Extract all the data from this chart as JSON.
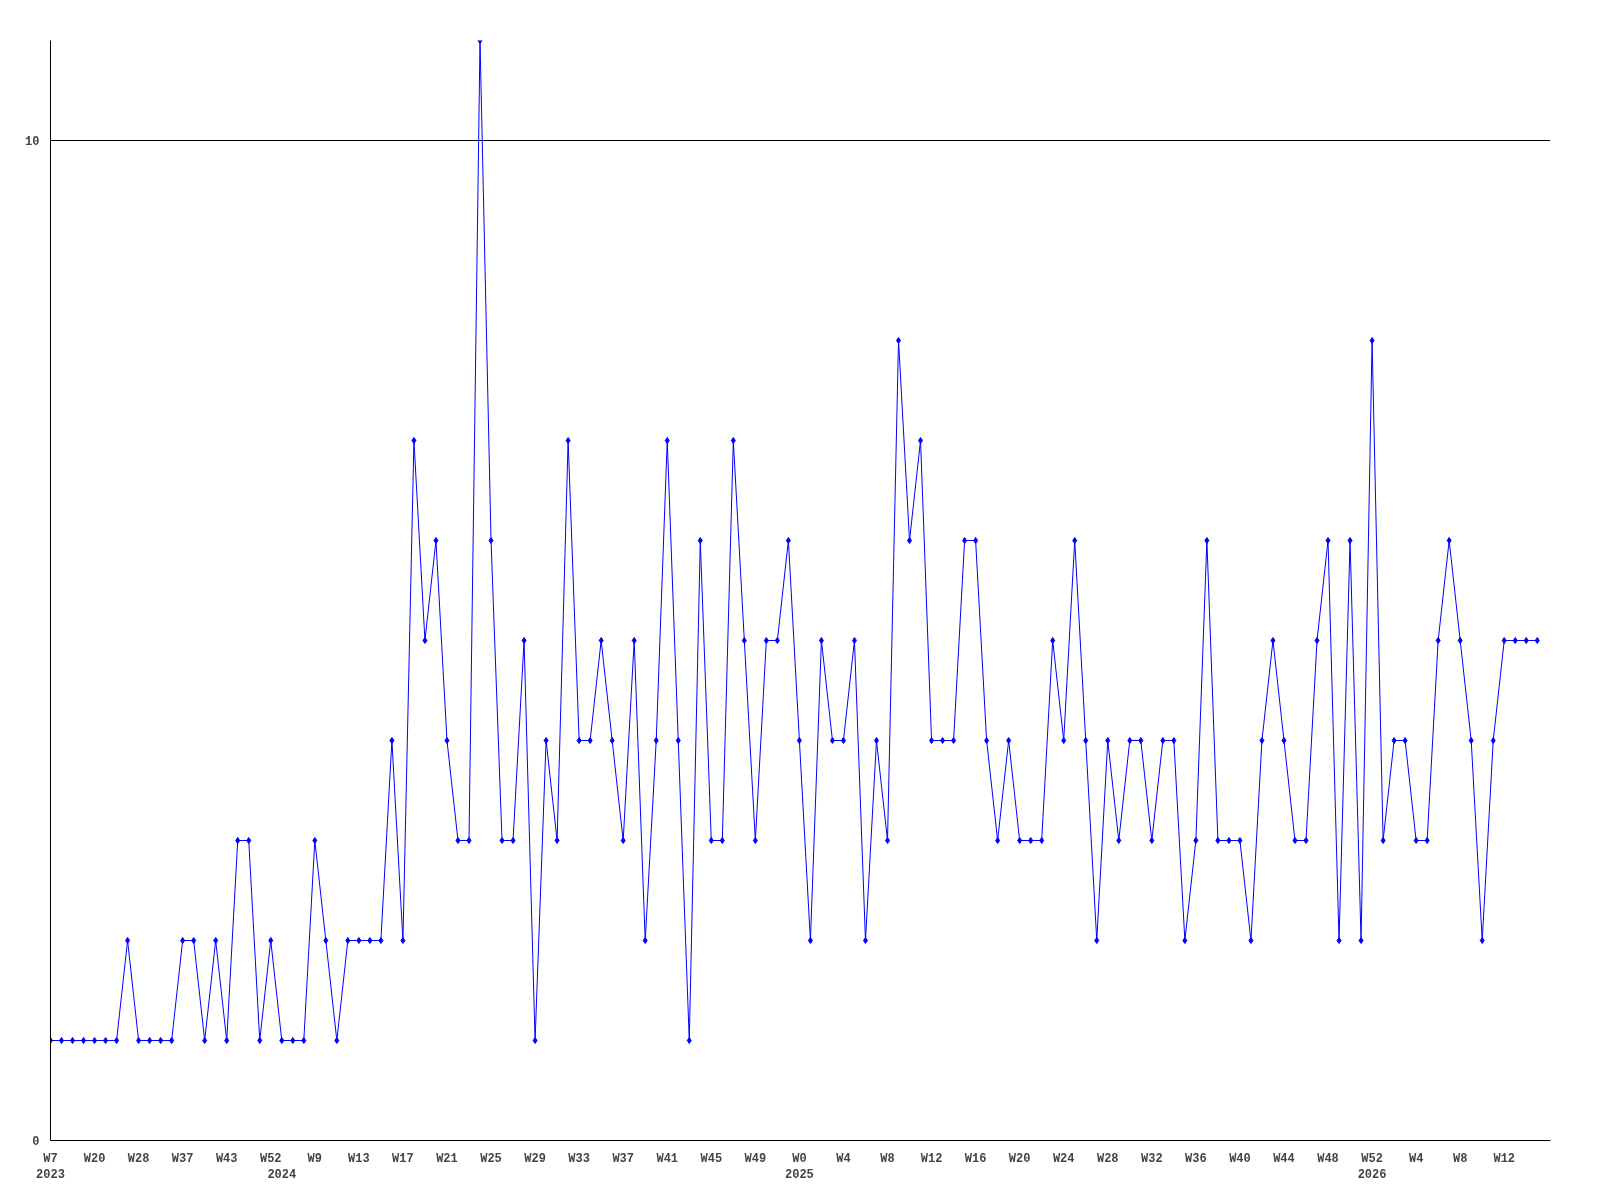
{
  "chart_data": {
    "type": "line",
    "marker": "diamond",
    "grid": "y",
    "ylim": [
      0,
      11
    ],
    "yticks": [
      0,
      10
    ],
    "categories": [
      "W7\n2023",
      null,
      null,
      null,
      "W20",
      null,
      null,
      null,
      "W28",
      null,
      null,
      null,
      "W37",
      null,
      null,
      null,
      "W43",
      null,
      null,
      null,
      "W52",
      "\n2024",
      null,
      null,
      "W9",
      null,
      null,
      null,
      "W13",
      null,
      null,
      null,
      "W17",
      null,
      null,
      null,
      "W21",
      null,
      null,
      null,
      "W25",
      null,
      null,
      null,
      "W29",
      null,
      null,
      null,
      "W33",
      null,
      null,
      null,
      "W37",
      null,
      null,
      null,
      "W41",
      null,
      null,
      null,
      "W45",
      null,
      null,
      null,
      "W49",
      null,
      null,
      null,
      "W0\n2025",
      null,
      null,
      null,
      "W4",
      null,
      null,
      null,
      "W8",
      null,
      null,
      null,
      "W12",
      null,
      null,
      null,
      "W16",
      null,
      null,
      null,
      "W20",
      null,
      null,
      null,
      "W24",
      null,
      null,
      null,
      "W28",
      null,
      null,
      null,
      "W32",
      null,
      null,
      null,
      "W36",
      null,
      null,
      null,
      "W40",
      null,
      null,
      null,
      "W44",
      null,
      null,
      null,
      "W48",
      null,
      null,
      null,
      "W52\n2026",
      null,
      null,
      null,
      "W4",
      null,
      null,
      null,
      "W8",
      null,
      null,
      null,
      "W12",
      null,
      null,
      null
    ],
    "series": [
      {
        "color": "#0000ff",
        "values": [
          1,
          1,
          1,
          1,
          1,
          1,
          1,
          2,
          1,
          1,
          1,
          1,
          2,
          2,
          1,
          2,
          1,
          3,
          3,
          1,
          2,
          1,
          1,
          1,
          3,
          2,
          1,
          2,
          2,
          2,
          2,
          4,
          2,
          7,
          5,
          6,
          4,
          3,
          3,
          11,
          6,
          3,
          3,
          5,
          1,
          4,
          3,
          7,
          4,
          4,
          5,
          4,
          3,
          5,
          2,
          4,
          7,
          4,
          1,
          6,
          3,
          3,
          7,
          5,
          3,
          5,
          5,
          6,
          4,
          2,
          5,
          4,
          4,
          5,
          2,
          4,
          3,
          8,
          6,
          7,
          4,
          4,
          4,
          6,
          6,
          4,
          3,
          4,
          3,
          3,
          3,
          5,
          4,
          6,
          4,
          2,
          4,
          3,
          4,
          4,
          3,
          4,
          4,
          2,
          3,
          6,
          3,
          3,
          3,
          2,
          4,
          5,
          4,
          3,
          3,
          5,
          6,
          2,
          6,
          2,
          8,
          3,
          4,
          4,
          3,
          3,
          5,
          6,
          5,
          4,
          2,
          4,
          5,
          5,
          5,
          5
        ]
      }
    ]
  }
}
